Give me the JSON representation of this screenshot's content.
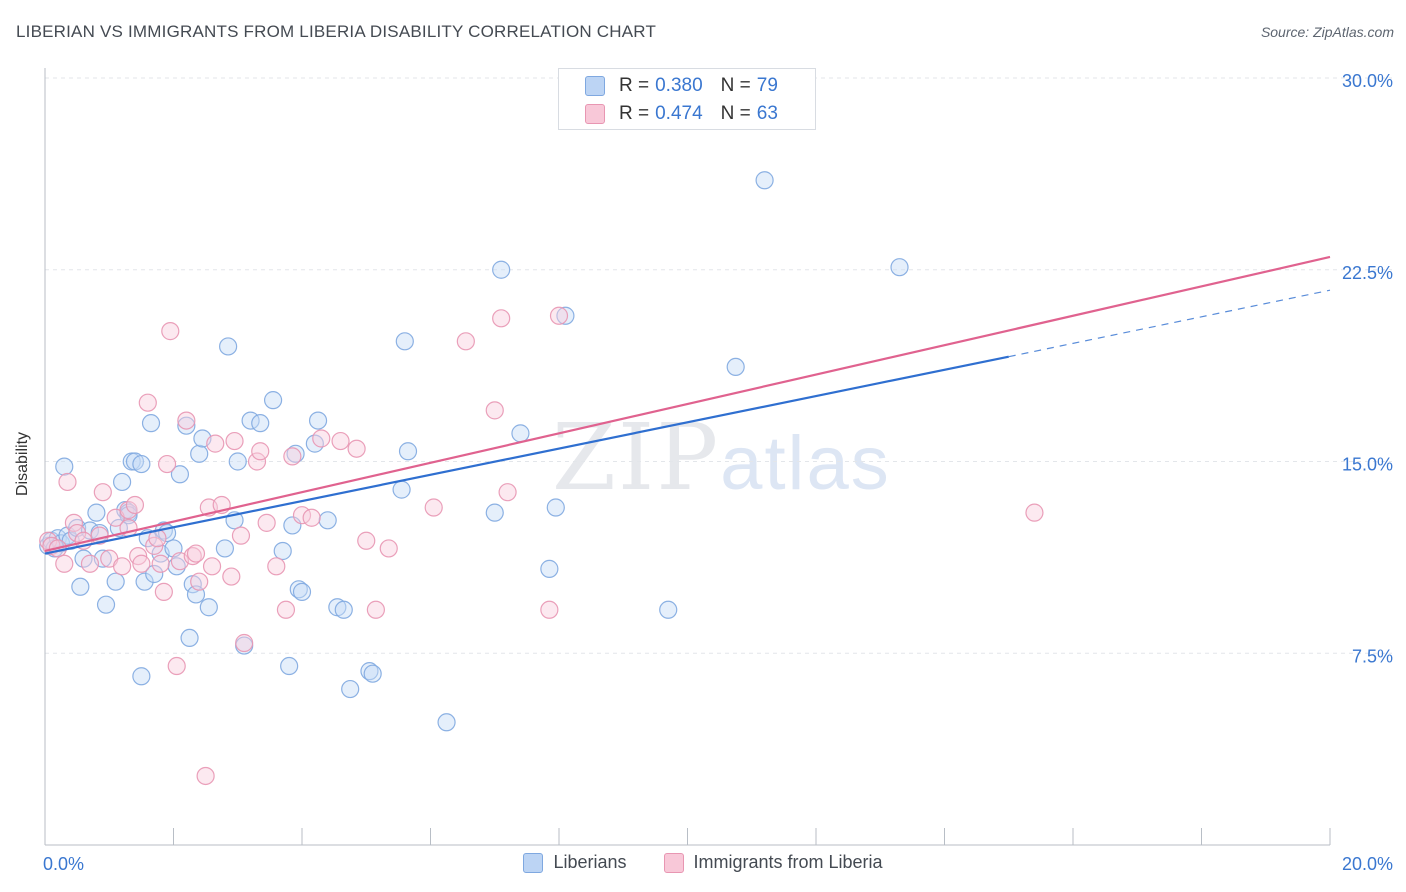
{
  "title": "LIBERIAN VS IMMIGRANTS FROM LIBERIA DISABILITY CORRELATION CHART",
  "source": "Source: ZipAtlas.com",
  "watermark": {
    "zip": "ZIP",
    "atlas": "atlas"
  },
  "stats": {
    "rows": [
      {
        "r_label": "R =",
        "r_value": "0.380",
        "n_label": "N =",
        "n_value": "79",
        "color": "#7fa8e0"
      },
      {
        "r_label": "R =",
        "r_value": "0.474",
        "n_label": "N =",
        "n_value": "63",
        "color": "#e896b2"
      }
    ]
  },
  "legend": {
    "items": [
      {
        "label": "Liberians"
      },
      {
        "label": "Immigrants from Liberia"
      }
    ]
  },
  "chart_data": {
    "type": "scatter",
    "ylabel": "Disability",
    "xlim": [
      0,
      20
    ],
    "ylim": [
      0,
      30
    ],
    "x_ticks": [
      "0.0%",
      "20.0%"
    ],
    "y_ticks": [
      {
        "value": 30.0,
        "label": "30.0%"
      },
      {
        "value": 22.5,
        "label": "22.5%"
      },
      {
        "value": 15.0,
        "label": "15.0%"
      },
      {
        "value": 7.5,
        "label": "7.5%"
      }
    ],
    "grid": true,
    "legend_position": "bottom",
    "series": [
      {
        "name": "Liberians",
        "color": "#7fa8e0",
        "fill": "#c6dbf6",
        "trend": {
          "x": [
            0.0,
            15.0
          ],
          "y": [
            11.4,
            19.1
          ],
          "dashed_to": [
            20.0,
            21.7
          ],
          "color": "#2f6fd0"
        },
        "points": [
          [
            0.05,
            11.7
          ],
          [
            0.1,
            11.9
          ],
          [
            0.15,
            11.6
          ],
          [
            0.2,
            12.0
          ],
          [
            0.25,
            11.8
          ],
          [
            0.3,
            14.8
          ],
          [
            0.35,
            12.1
          ],
          [
            0.4,
            11.9
          ],
          [
            0.5,
            12.4
          ],
          [
            0.55,
            10.1
          ],
          [
            0.6,
            11.2
          ],
          [
            0.7,
            12.3
          ],
          [
            0.8,
            13.0
          ],
          [
            0.85,
            12.2
          ],
          [
            0.9,
            11.2
          ],
          [
            0.95,
            9.4
          ],
          [
            1.1,
            10.3
          ],
          [
            1.15,
            12.4
          ],
          [
            1.2,
            14.2
          ],
          [
            1.25,
            13.1
          ],
          [
            1.3,
            13.0
          ],
          [
            1.35,
            15.0
          ],
          [
            1.4,
            15.0
          ],
          [
            1.5,
            14.9
          ],
          [
            1.5,
            6.6
          ],
          [
            1.55,
            10.3
          ],
          [
            1.6,
            12.0
          ],
          [
            1.65,
            16.5
          ],
          [
            1.7,
            10.6
          ],
          [
            1.8,
            11.4
          ],
          [
            1.85,
            12.3
          ],
          [
            1.9,
            12.2
          ],
          [
            2.0,
            11.6
          ],
          [
            2.05,
            10.9
          ],
          [
            2.1,
            14.5
          ],
          [
            2.2,
            16.4
          ],
          [
            2.25,
            8.1
          ],
          [
            2.3,
            10.2
          ],
          [
            2.35,
            9.8
          ],
          [
            2.4,
            15.3
          ],
          [
            2.45,
            15.9
          ],
          [
            2.55,
            9.3
          ],
          [
            2.8,
            11.6
          ],
          [
            2.85,
            19.5
          ],
          [
            2.95,
            12.7
          ],
          [
            3.0,
            15.0
          ],
          [
            3.1,
            7.8
          ],
          [
            3.2,
            16.6
          ],
          [
            3.35,
            16.5
          ],
          [
            3.55,
            17.4
          ],
          [
            3.7,
            11.5
          ],
          [
            3.8,
            7.0
          ],
          [
            3.85,
            12.5
          ],
          [
            3.9,
            15.3
          ],
          [
            3.95,
            10.0
          ],
          [
            4.0,
            9.9
          ],
          [
            4.2,
            15.7
          ],
          [
            4.25,
            16.6
          ],
          [
            4.4,
            12.7
          ],
          [
            4.55,
            9.3
          ],
          [
            4.65,
            9.2
          ],
          [
            4.75,
            6.1
          ],
          [
            5.05,
            6.8
          ],
          [
            5.1,
            6.7
          ],
          [
            5.55,
            13.9
          ],
          [
            5.6,
            19.7
          ],
          [
            5.65,
            15.4
          ],
          [
            6.25,
            4.8
          ],
          [
            7.0,
            13.0
          ],
          [
            7.1,
            22.5
          ],
          [
            7.4,
            16.1
          ],
          [
            7.85,
            10.8
          ],
          [
            7.95,
            13.2
          ],
          [
            8.1,
            20.7
          ],
          [
            9.7,
            9.2
          ],
          [
            10.75,
            18.7
          ],
          [
            11.2,
            26.0
          ],
          [
            13.3,
            22.6
          ],
          [
            1.3,
            12.9
          ]
        ]
      },
      {
        "name": "Immigrants from Liberia",
        "color": "#e896b2",
        "fill": "#f9cfdd",
        "trend": {
          "x": [
            0.0,
            20.0
          ],
          "y": [
            11.5,
            23.0
          ],
          "color": "#e0628f"
        },
        "points": [
          [
            0.05,
            11.9
          ],
          [
            0.1,
            11.7
          ],
          [
            0.2,
            11.6
          ],
          [
            0.3,
            11.0
          ],
          [
            0.35,
            14.2
          ],
          [
            0.45,
            12.6
          ],
          [
            0.5,
            12.2
          ],
          [
            0.6,
            11.9
          ],
          [
            0.7,
            11.0
          ],
          [
            0.85,
            12.1
          ],
          [
            0.9,
            13.8
          ],
          [
            1.0,
            11.2
          ],
          [
            1.1,
            12.8
          ],
          [
            1.2,
            10.9
          ],
          [
            1.3,
            12.4
          ],
          [
            1.3,
            13.1
          ],
          [
            1.4,
            13.3
          ],
          [
            1.45,
            11.3
          ],
          [
            1.5,
            11.0
          ],
          [
            1.6,
            17.3
          ],
          [
            1.7,
            11.7
          ],
          [
            1.75,
            12.0
          ],
          [
            1.8,
            11.0
          ],
          [
            1.85,
            9.9
          ],
          [
            1.9,
            14.9
          ],
          [
            1.95,
            20.1
          ],
          [
            2.05,
            7.0
          ],
          [
            2.1,
            11.1
          ],
          [
            2.2,
            16.6
          ],
          [
            2.3,
            11.3
          ],
          [
            2.35,
            11.4
          ],
          [
            2.4,
            10.3
          ],
          [
            2.5,
            2.7
          ],
          [
            2.55,
            13.2
          ],
          [
            2.6,
            10.9
          ],
          [
            2.65,
            15.7
          ],
          [
            2.75,
            13.3
          ],
          [
            2.9,
            10.5
          ],
          [
            2.95,
            15.8
          ],
          [
            3.05,
            12.1
          ],
          [
            3.1,
            7.9
          ],
          [
            3.3,
            15.0
          ],
          [
            3.35,
            15.4
          ],
          [
            3.45,
            12.6
          ],
          [
            3.6,
            10.9
          ],
          [
            3.75,
            9.2
          ],
          [
            3.85,
            15.2
          ],
          [
            4.0,
            12.9
          ],
          [
            4.15,
            12.8
          ],
          [
            4.3,
            15.9
          ],
          [
            4.6,
            15.8
          ],
          [
            4.85,
            15.5
          ],
          [
            5.0,
            11.9
          ],
          [
            5.15,
            9.2
          ],
          [
            5.35,
            11.6
          ],
          [
            6.05,
            13.2
          ],
          [
            6.55,
            19.7
          ],
          [
            7.0,
            17.0
          ],
          [
            7.1,
            20.6
          ],
          [
            7.2,
            13.8
          ],
          [
            7.85,
            9.2
          ],
          [
            8.0,
            20.7
          ],
          [
            15.4,
            13.0
          ]
        ]
      }
    ]
  }
}
